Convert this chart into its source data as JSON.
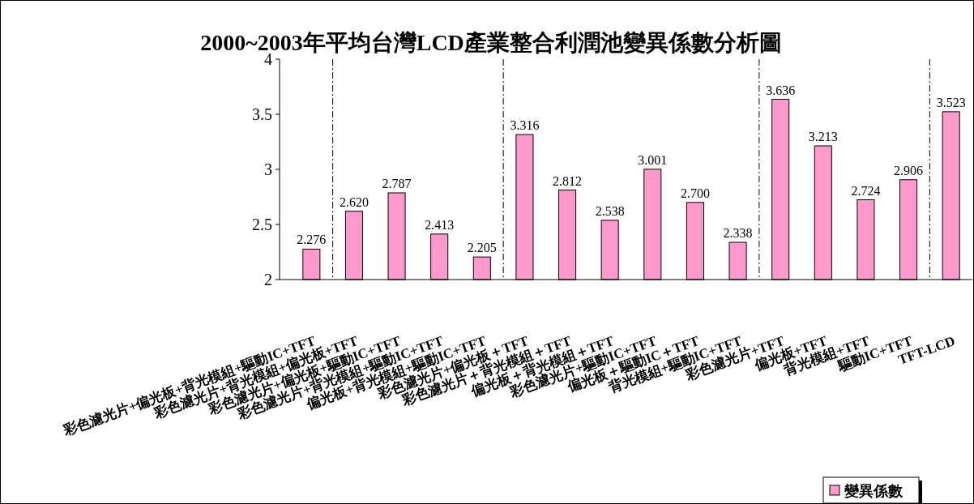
{
  "chart_data": {
    "type": "bar",
    "title": "2000~2003年平均台灣LCD產業整合利潤池變異係數分析圖",
    "categories": [
      "彩色濾光片+偏光板+背光模組+驅動IC+TFT",
      "彩色濾光片+背光模組+偏光板+TFT",
      "彩色濾光片+偏光板+驅動IC+TFT",
      "彩色濾光片+背光模組+驅動IC+TFT",
      "偏光板+背光模組+驅動IC+TFT",
      "彩色濾光片+偏光板＋TFT",
      "彩色濾光片＋背光模組＋TFT",
      "偏光板＋背光模組＋TFT",
      "彩色濾光片+驅動IC+TFT",
      "偏光板＋驅動IC＋TFT",
      "背光模組+驅動IC+TFT",
      "彩色濾光片+TFT",
      "偏光板+TFT",
      "背光模組+TFT",
      "驅動IC+TFT",
      "TFT-LCD"
    ],
    "series": [
      {
        "name": "變異係數",
        "color": "#ff99cc",
        "values": [
          2.276,
          2.62,
          2.787,
          2.413,
          2.205,
          3.316,
          2.812,
          2.538,
          3.001,
          2.7,
          2.338,
          3.636,
          3.213,
          2.724,
          2.906,
          3.523
        ]
      }
    ],
    "value_labels": [
      "2.276",
      "2.620",
      "2.787",
      "2.413",
      "2.205",
      "3.316",
      "2.812",
      "2.538",
      "3.001",
      "2.700",
      "2.338",
      "3.636",
      "3.213",
      "2.724",
      "2.906",
      "3.523"
    ],
    "ylim": [
      2,
      4
    ],
    "yticks": [
      2,
      2.5,
      3,
      3.5,
      4
    ],
    "grid": false,
    "legend": "bottom right"
  }
}
